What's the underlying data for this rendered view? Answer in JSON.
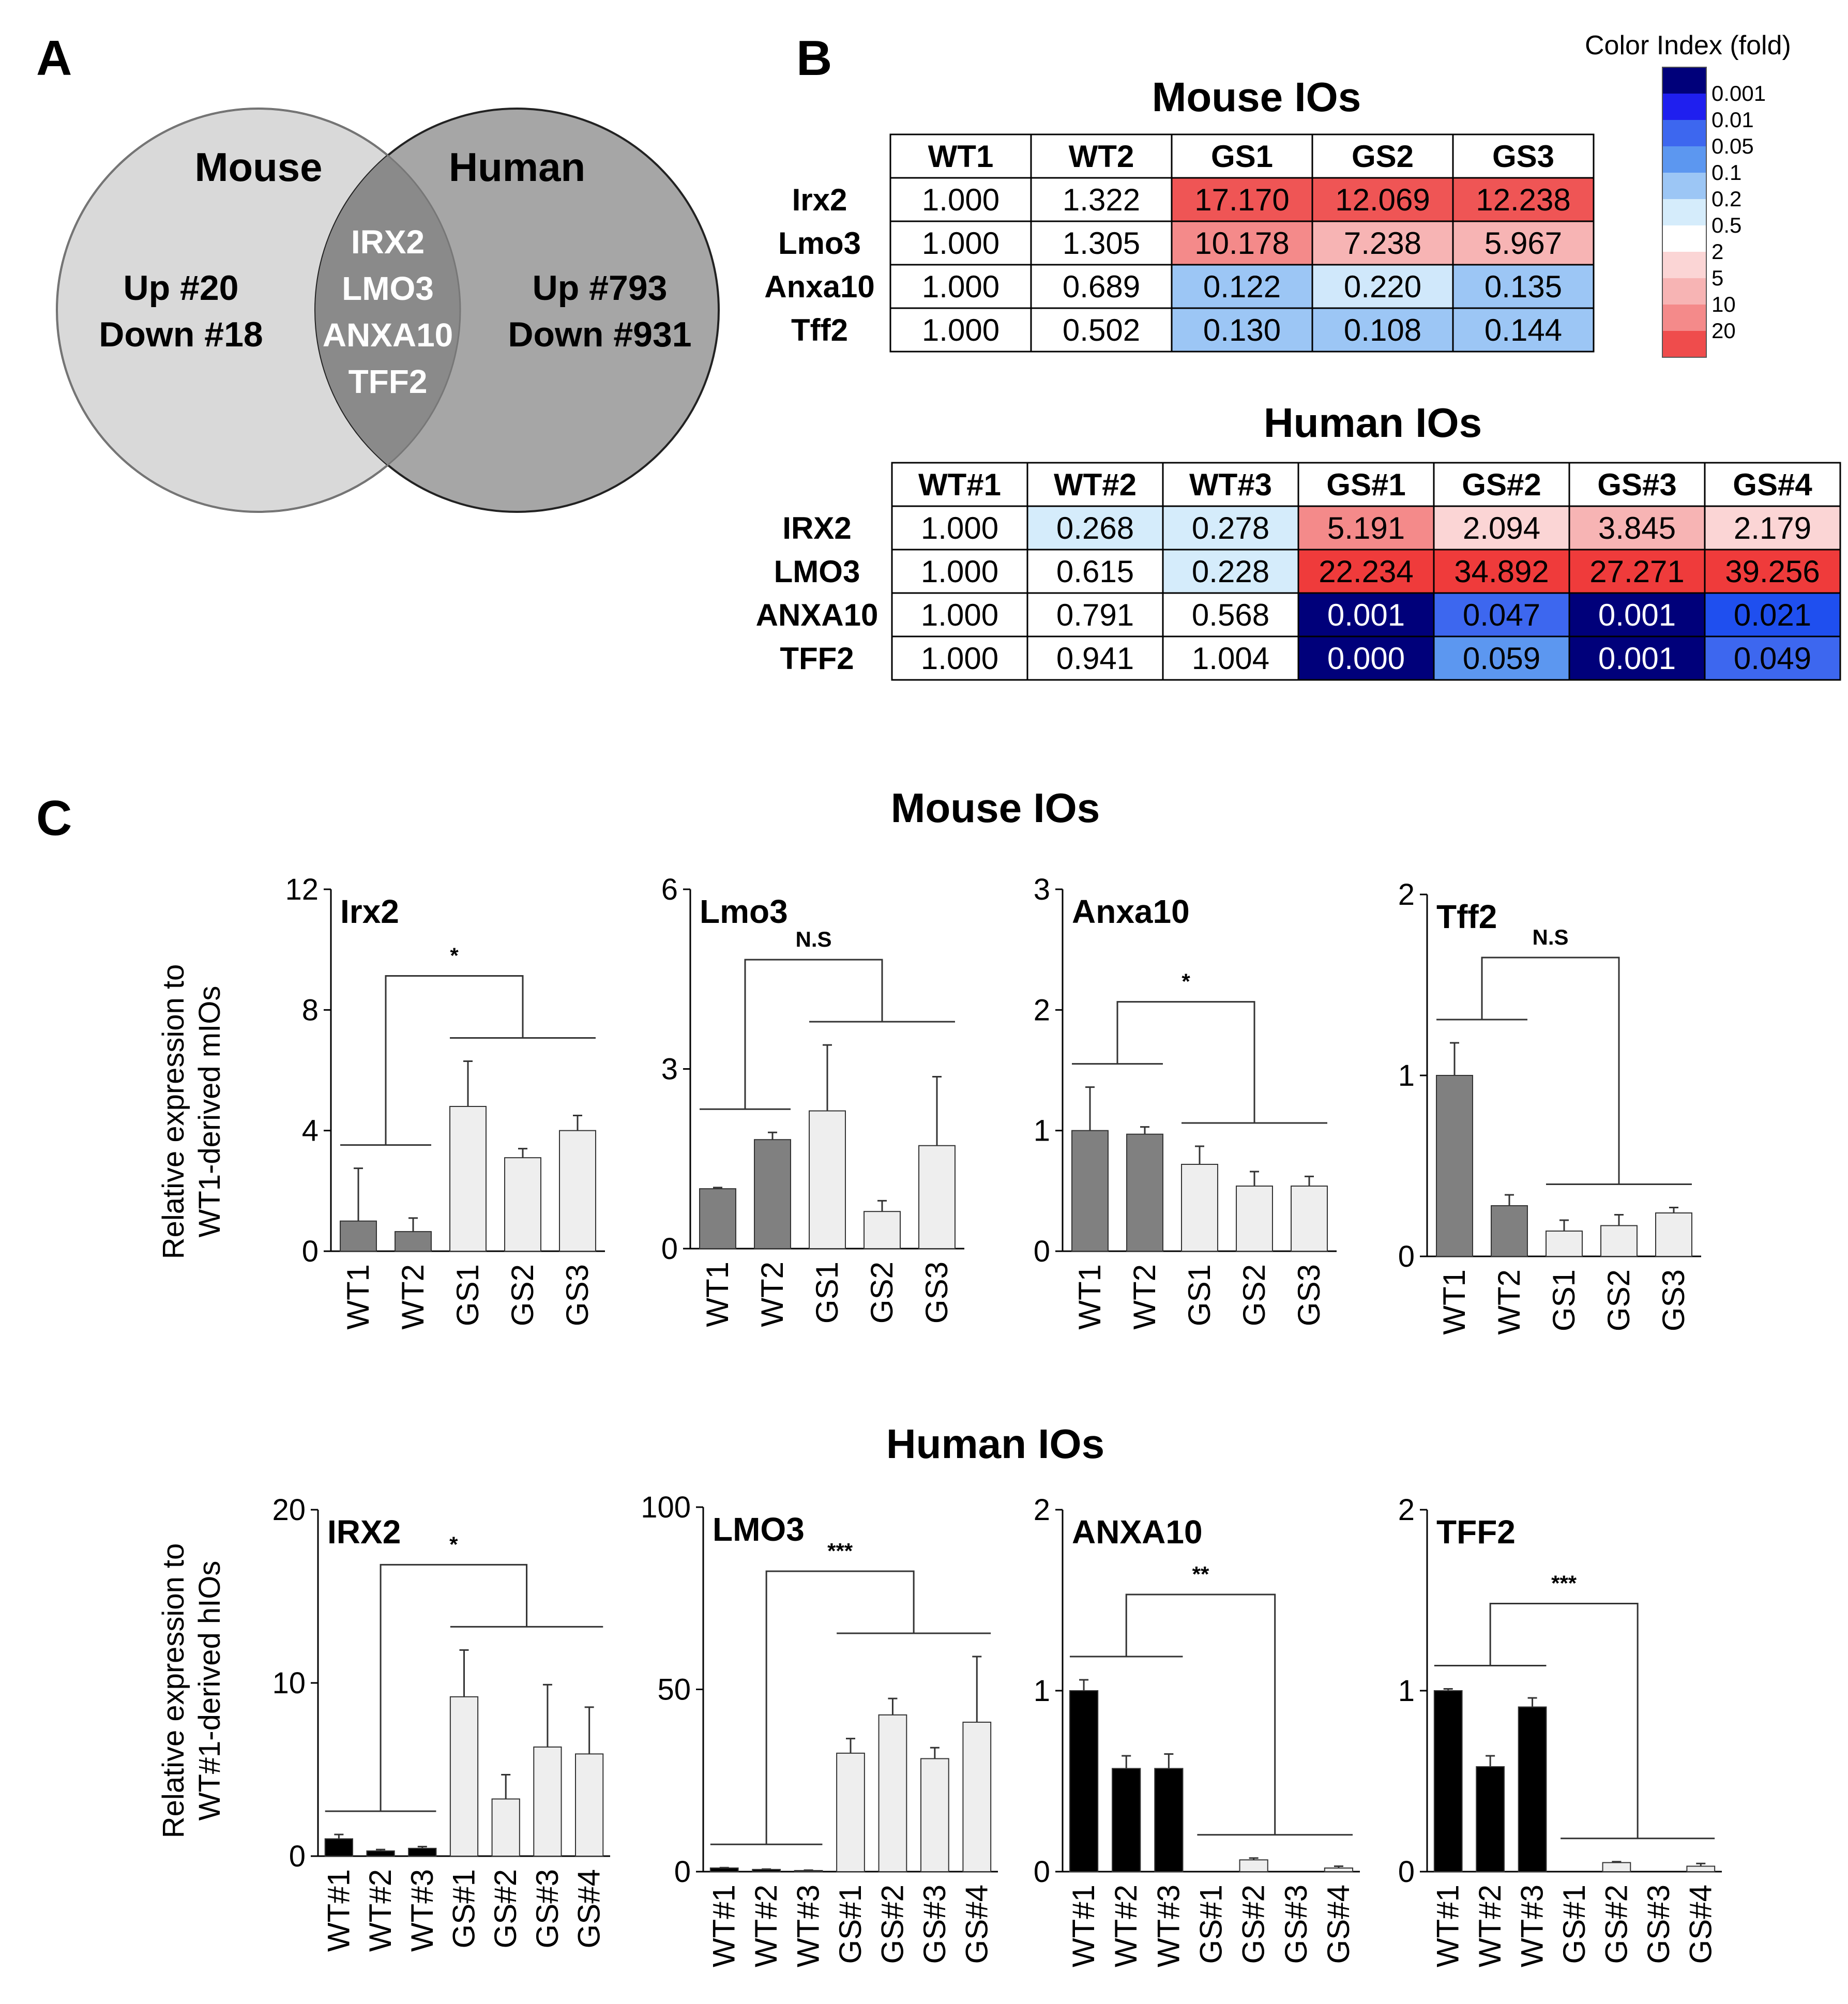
{
  "panel_labels": {
    "a": "A",
    "b": "B",
    "c": "C"
  },
  "venn": {
    "left_title": "Mouse",
    "right_title": "Human",
    "left_lines": [
      "Up #20",
      "Down #18"
    ],
    "right_lines": [
      "Up #793",
      "Down #931"
    ],
    "overlap_genes": [
      "IRX2",
      "LMO3",
      "ANXA10",
      "TFF2"
    ]
  },
  "colors": {
    "venn_left": "#d9d9d9",
    "venn_right": "#a6a6a6",
    "venn_overlap": "#8a8a8a",
    "bar_wt_mouse": "#808080",
    "bar_wt_human": "#000000",
    "bar_gs": "#eeeeee",
    "table_border": "#000000"
  },
  "color_index": {
    "title": "Color Index (fold)",
    "labels": [
      "0.001",
      "0.01",
      "0.05",
      "0.1",
      "0.2",
      "0.5",
      "2",
      "5",
      "10",
      "20"
    ],
    "swatches": [
      "#00007a",
      "#1f1fef",
      "#3d67ef",
      "#5c97f0",
      "#9cc6f5",
      "#d5ecfb",
      "#ffffff",
      "#fbd5d5",
      "#f7b4b4",
      "#f48a8a",
      "#ef4c4c"
    ]
  },
  "mouse_table": {
    "title": "Mouse IOs",
    "columns": [
      "WT1",
      "WT2",
      "GS1",
      "GS2",
      "GS3"
    ],
    "rows": [
      {
        "gene": "Irx2",
        "values": [
          "1.000",
          "1.322",
          "17.170",
          "12.069",
          "12.238"
        ],
        "fills": [
          "#ffffff",
          "#ffffff",
          "#ef5555",
          "#ef5555",
          "#ef5555"
        ]
      },
      {
        "gene": "Lmo3",
        "values": [
          "1.000",
          "1.305",
          "10.178",
          "7.238",
          "5.967"
        ],
        "fills": [
          "#ffffff",
          "#ffffff",
          "#f48a8a",
          "#f7b4b4",
          "#f7b4b4"
        ]
      },
      {
        "gene": "Anxa10",
        "values": [
          "1.000",
          "0.689",
          "0.122",
          "0.220",
          "0.135"
        ],
        "fills": [
          "#ffffff",
          "#ffffff",
          "#9cc6f5",
          "#d0e8fb",
          "#9cc6f5"
        ]
      },
      {
        "gene": "Tff2",
        "values": [
          "1.000",
          "0.502",
          "0.130",
          "0.108",
          "0.144"
        ],
        "fills": [
          "#ffffff",
          "#ffffff",
          "#9cc6f5",
          "#9cc6f5",
          "#9cc6f5"
        ]
      }
    ]
  },
  "human_table": {
    "title": "Human IOs",
    "columns": [
      "WT#1",
      "WT#2",
      "WT#3",
      "GS#1",
      "GS#2",
      "GS#3",
      "GS#4"
    ],
    "rows": [
      {
        "gene": "IRX2",
        "values": [
          "1.000",
          "0.268",
          "0.278",
          "5.191",
          "2.094",
          "3.845",
          "2.179"
        ],
        "fills": [
          "#ffffff",
          "#d5ecfb",
          "#d5ecfb",
          "#f48a8a",
          "#fbd5d5",
          "#f7b4b4",
          "#fbd5d5"
        ],
        "dark": [
          false,
          false,
          false,
          false,
          false,
          false,
          false
        ]
      },
      {
        "gene": "LMO3",
        "values": [
          "1.000",
          "0.615",
          "0.228",
          "22.234",
          "34.892",
          "27.271",
          "39.256"
        ],
        "fills": [
          "#ffffff",
          "#ffffff",
          "#d5ecfb",
          "#ef3b3b",
          "#ef3b3b",
          "#ef3b3b",
          "#ef3b3b"
        ],
        "dark": [
          false,
          false,
          false,
          false,
          false,
          false,
          false
        ]
      },
      {
        "gene": "ANXA10",
        "values": [
          "1.000",
          "0.791",
          "0.568",
          "0.001",
          "0.047",
          "0.001",
          "0.021"
        ],
        "fills": [
          "#ffffff",
          "#ffffff",
          "#ffffff",
          "#00007a",
          "#3d67ef",
          "#00007a",
          "#1f4fef"
        ],
        "dark": [
          false,
          false,
          false,
          true,
          false,
          true,
          false
        ]
      },
      {
        "gene": "TFF2",
        "values": [
          "1.000",
          "0.941",
          "1.004",
          "0.000",
          "0.059",
          "0.001",
          "0.049"
        ],
        "fills": [
          "#ffffff",
          "#ffffff",
          "#ffffff",
          "#00007a",
          "#5c97f0",
          "#00007a",
          "#3d67ef"
        ],
        "dark": [
          false,
          false,
          false,
          true,
          false,
          true,
          false
        ]
      }
    ]
  },
  "chart_titles": {
    "mouse": "Mouse IOs",
    "human": "Human IOs"
  },
  "ylabel_mouse": [
    "Relative expression to",
    "WT1-derived mIOs"
  ],
  "ylabel_human": [
    "Relative expression to",
    "WT#1-derived hIOs"
  ],
  "chart_data": [
    {
      "type": "bar",
      "title": "Irx2",
      "categories": [
        "WT1",
        "WT2",
        "GS1",
        "GS2",
        "GS3"
      ],
      "values": [
        1.0,
        0.65,
        4.8,
        3.1,
        4.0
      ],
      "errors": [
        1.75,
        0.45,
        1.5,
        0.3,
        0.5
      ],
      "groups": [
        "wt",
        "wt",
        "gs",
        "gs",
        "gs"
      ],
      "ylim": [
        0,
        12
      ],
      "yticks": [
        0,
        4,
        8,
        12
      ],
      "significance": "*"
    },
    {
      "type": "bar",
      "title": "Lmo3",
      "categories": [
        "WT1",
        "WT2",
        "GS1",
        "GS2",
        "GS3"
      ],
      "values": [
        1.0,
        1.82,
        2.3,
        0.62,
        1.72
      ],
      "errors": [
        0.02,
        0.12,
        1.1,
        0.18,
        1.15
      ],
      "groups": [
        "wt",
        "wt",
        "gs",
        "gs",
        "gs"
      ],
      "ylim": [
        0,
        6
      ],
      "yticks": [
        0,
        3,
        6
      ],
      "significance": "N.S"
    },
    {
      "type": "bar",
      "title": "Anxa10",
      "categories": [
        "WT1",
        "WT2",
        "GS1",
        "GS2",
        "GS3"
      ],
      "values": [
        1.0,
        0.97,
        0.72,
        0.54,
        0.54
      ],
      "errors": [
        0.36,
        0.06,
        0.15,
        0.12,
        0.08
      ],
      "groups": [
        "wt",
        "wt",
        "gs",
        "gs",
        "gs"
      ],
      "ylim": [
        0,
        3
      ],
      "yticks": [
        0,
        1,
        2,
        3
      ],
      "significance": "*"
    },
    {
      "type": "bar",
      "title": "Tff2",
      "categories": [
        "WT1",
        "WT2",
        "GS1",
        "GS2",
        "GS3"
      ],
      "values": [
        1.0,
        0.28,
        0.14,
        0.17,
        0.24
      ],
      "errors": [
        0.18,
        0.06,
        0.06,
        0.06,
        0.03
      ],
      "groups": [
        "wt",
        "wt",
        "gs",
        "gs",
        "gs"
      ],
      "ylim": [
        0,
        2
      ],
      "yticks": [
        0,
        1,
        2
      ],
      "significance": "N.S"
    },
    {
      "type": "bar",
      "title": "IRX2",
      "categories": [
        "WT#1",
        "WT#2",
        "WT#3",
        "GS#1",
        "GS#2",
        "GS#3",
        "GS#4"
      ],
      "values": [
        1.0,
        0.3,
        0.45,
        9.2,
        3.3,
        6.3,
        5.9
      ],
      "errors": [
        0.25,
        0.08,
        0.1,
        2.7,
        1.4,
        3.6,
        2.7
      ],
      "groups": [
        "wt",
        "wt",
        "wt",
        "gs",
        "gs",
        "gs",
        "gs"
      ],
      "ylim": [
        0,
        20
      ],
      "yticks": [
        0,
        10,
        20
      ],
      "significance": "*"
    },
    {
      "type": "bar",
      "title": "LMO3",
      "categories": [
        "WT#1",
        "WT#2",
        "WT#3",
        "GS#1",
        "GS#2",
        "GS#3",
        "GS#4"
      ],
      "values": [
        1.0,
        0.6,
        0.3,
        32.5,
        43.0,
        31.0,
        41.0
      ],
      "errors": [
        0.1,
        0.1,
        0.1,
        4.0,
        4.5,
        3.0,
        18.0
      ],
      "groups": [
        "wt",
        "wt",
        "wt",
        "gs",
        "gs",
        "gs",
        "gs"
      ],
      "ylim": [
        0,
        100
      ],
      "yticks": [
        0,
        50,
        100
      ],
      "significance": "***"
    },
    {
      "type": "bar",
      "title": "ANXA10",
      "categories": [
        "WT#1",
        "WT#2",
        "WT#3",
        "GS#1",
        "GS#2",
        "GS#3",
        "GS#4"
      ],
      "values": [
        1.0,
        0.57,
        0.57,
        0.0,
        0.065,
        0.0,
        0.02
      ],
      "errors": [
        0.06,
        0.07,
        0.08,
        0.0,
        0.01,
        0.0,
        0.01
      ],
      "groups": [
        "wt",
        "wt",
        "wt",
        "gs",
        "gs",
        "gs",
        "gs"
      ],
      "ylim": [
        0,
        2
      ],
      "yticks": [
        0,
        1,
        2
      ],
      "significance": "**"
    },
    {
      "type": "bar",
      "title": "TFF2",
      "categories": [
        "WT#1",
        "WT#2",
        "WT#3",
        "GS#1",
        "GS#2",
        "GS#3",
        "GS#4"
      ],
      "values": [
        1.0,
        0.58,
        0.91,
        0.0,
        0.05,
        0.0,
        0.03
      ],
      "errors": [
        0.01,
        0.06,
        0.05,
        0.0,
        0.005,
        0.0,
        0.015
      ],
      "groups": [
        "wt",
        "wt",
        "wt",
        "gs",
        "gs",
        "gs",
        "gs"
      ],
      "ylim": [
        0,
        2
      ],
      "yticks": [
        0,
        1,
        2
      ],
      "significance": "***"
    }
  ]
}
